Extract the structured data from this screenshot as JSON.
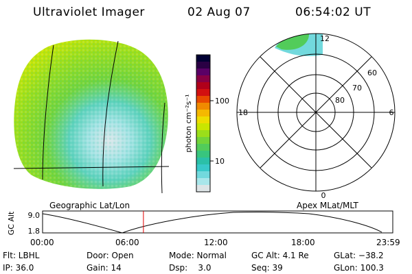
{
  "header": {
    "instrument": "Ultraviolet Imager",
    "date": "02 Aug 07",
    "time": "06:54:02 UT"
  },
  "colorbar": {
    "unit_label": "photon cm⁻²s⁻¹",
    "ticks": [
      "100",
      "10"
    ],
    "colors": [
      "#000033",
      "#2a0044",
      "#5a0066",
      "#880044",
      "#b0001a",
      "#d21010",
      "#e84a00",
      "#f08a00",
      "#f5b800",
      "#eedd00",
      "#c9e600",
      "#9bde1a",
      "#72d43a",
      "#52cc5a",
      "#38c57e",
      "#2bc0a8",
      "#38c9c9",
      "#72d9dd",
      "#a9e6ea",
      "#dde4e6"
    ]
  },
  "globe": {
    "label": "Geographic Lat/Lon"
  },
  "polar": {
    "label": "Apex MLat/MLT",
    "hour_labels": [
      "12",
      "18",
      "6",
      "0"
    ],
    "lat_labels": [
      "60",
      "70",
      "80"
    ]
  },
  "altitude_plot": {
    "axis_title": "GC Alt",
    "y_ticks": [
      "9.0",
      "1.8"
    ],
    "x_ticks": [
      "00:00",
      "06:00",
      "12:00",
      "18:00",
      "23:59"
    ],
    "current_time_fraction": 0.288
  },
  "status": {
    "filter": "Flt: LBHL",
    "ip": "IP: 36.0",
    "door": "Door: Open",
    "gain": "Gain: 14",
    "mode": "Mode: Normal",
    "dsp": "Dsp:    3.0",
    "gc_alt": "GC Alt: 4.1 Re",
    "seq": "Seq: 39",
    "glat": "GLat: −38.2",
    "glon": "GLon: 100.3"
  }
}
